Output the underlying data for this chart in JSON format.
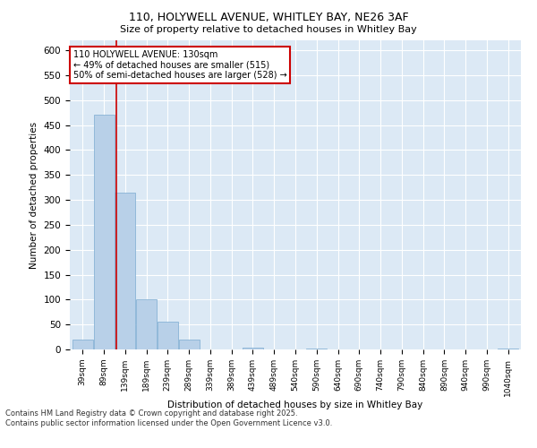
{
  "title_line1": "110, HOLYWELL AVENUE, WHITLEY BAY, NE26 3AF",
  "title_line2": "Size of property relative to detached houses in Whitley Bay",
  "xlabel": "Distribution of detached houses by size in Whitley Bay",
  "ylabel": "Number of detached properties",
  "categories": [
    "39sqm",
    "89sqm",
    "139sqm",
    "189sqm",
    "239sqm",
    "289sqm",
    "339sqm",
    "389sqm",
    "439sqm",
    "489sqm",
    "540sqm",
    "590sqm",
    "640sqm",
    "690sqm",
    "740sqm",
    "790sqm",
    "840sqm",
    "890sqm",
    "940sqm",
    "990sqm",
    "1040sqm"
  ],
  "values": [
    20,
    470,
    315,
    100,
    55,
    20,
    0,
    0,
    3,
    0,
    0,
    1,
    0,
    0,
    0,
    0,
    0,
    0,
    0,
    0,
    1
  ],
  "bar_color": "#b8d0e8",
  "bar_edge_color": "#7aaad0",
  "background_color": "#dce9f5",
  "grid_color": "#ffffff",
  "vline_x": 1.6,
  "vline_color": "#cc0000",
  "annotation_text": "110 HOLYWELL AVENUE: 130sqm\n← 49% of detached houses are smaller (515)\n50% of semi-detached houses are larger (528) →",
  "annotation_box_color": "#ffffff",
  "annotation_box_edge": "#cc0000",
  "footer_text": "Contains HM Land Registry data © Crown copyright and database right 2025.\nContains public sector information licensed under the Open Government Licence v3.0.",
  "ylim": [
    0,
    620
  ],
  "yticks": [
    0,
    50,
    100,
    150,
    200,
    250,
    300,
    350,
    400,
    450,
    500,
    550,
    600
  ]
}
